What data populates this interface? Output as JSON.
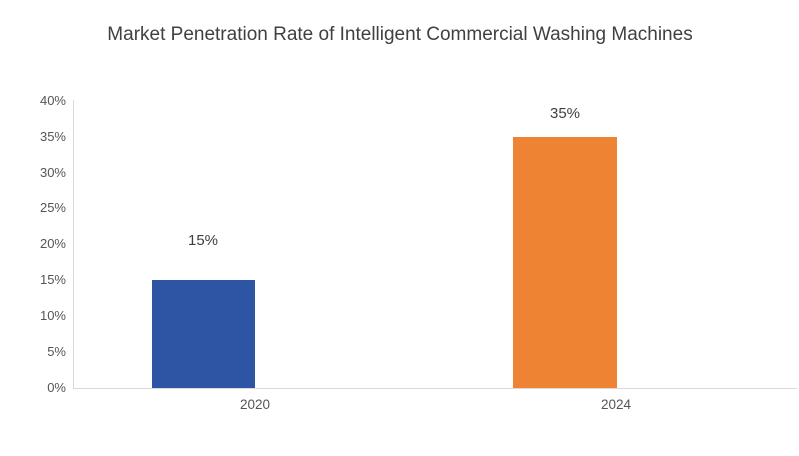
{
  "chart_data": {
    "type": "bar",
    "title": "Market Penetration Rate of Intelligent Commercial Washing Machines",
    "categories": [
      "2020",
      "2024"
    ],
    "values": [
      15,
      35
    ],
    "series": [
      {
        "name": "Market Penetration Rate",
        "values": [
          15,
          35
        ]
      }
    ],
    "data_labels": [
      "15%",
      "35%"
    ],
    "yticks": [
      0,
      5,
      10,
      15,
      20,
      25,
      30,
      35,
      40
    ],
    "ytick_labels": [
      "0%",
      "5%",
      "10%",
      "15%",
      "20%",
      "25%",
      "30%",
      "35%",
      "40%"
    ],
    "ylim": [
      0,
      40
    ],
    "xlabel": "",
    "ylabel": "",
    "grid": false,
    "legend_position": "none",
    "bar_colors": [
      "#2e55a3",
      "#ed8333"
    ],
    "title_color": "#404040",
    "axis_label_color": "#555555",
    "axis_line_color": "#d9d9d9",
    "background_color": "#ffffff"
  }
}
